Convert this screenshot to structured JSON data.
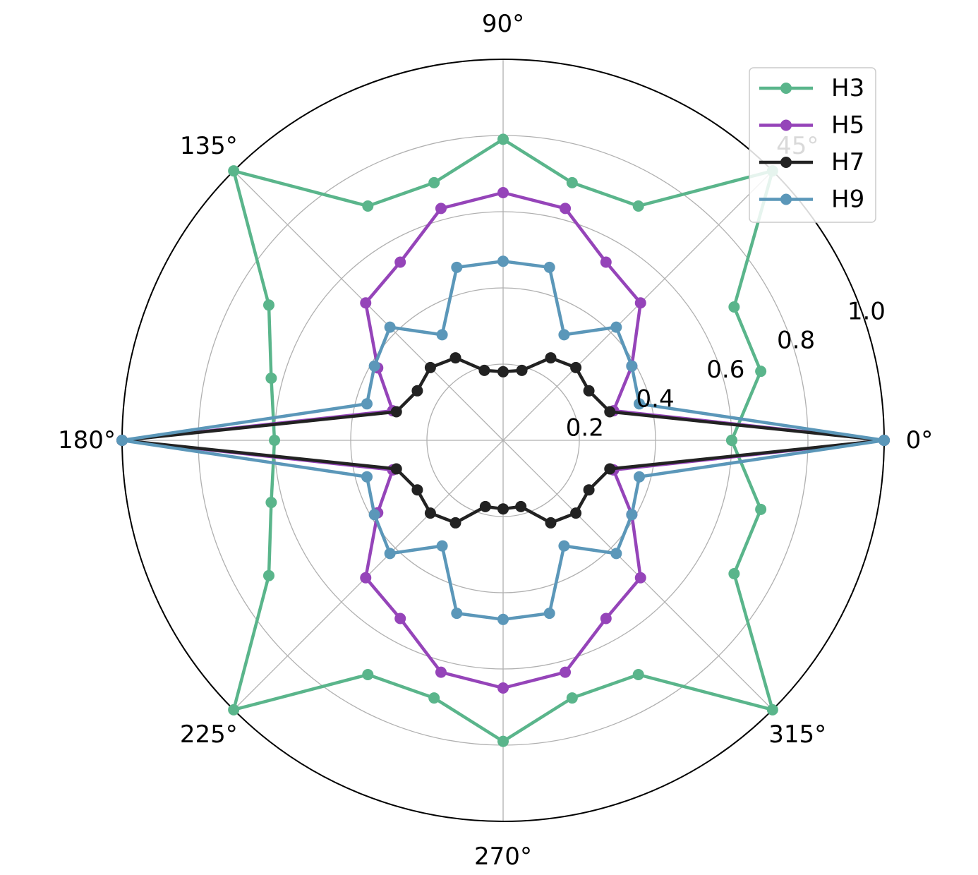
{
  "chart_data": {
    "type": "line",
    "subtype": "polar",
    "title": "",
    "angle_unit": "degrees",
    "rlim": [
      0,
      1.0
    ],
    "rticks": [
      0.2,
      0.4,
      0.6,
      0.8,
      1.0
    ],
    "rtick_labels": [
      "0.2",
      "0.4",
      "0.6",
      "0.8",
      "1.0"
    ],
    "angle_ticks": [
      0,
      45,
      90,
      135,
      180,
      225,
      270,
      315
    ],
    "angle_tick_labels": [
      "0°",
      "45°",
      "90°",
      "135°",
      "180°",
      "225°",
      "270°",
      "315°"
    ],
    "grid": true,
    "legend": {
      "placement": "top-right",
      "entries": [
        "H3",
        "H5",
        "H7",
        "H9"
      ]
    },
    "theta": [
      0,
      15,
      30,
      45,
      60,
      75,
      90,
      105,
      120,
      135,
      150,
      165,
      180,
      195,
      210,
      225,
      240,
      255,
      270,
      285,
      300,
      315,
      330,
      345,
      360
    ],
    "series": [
      {
        "name": "H3",
        "color": "#5ab58b",
        "values": [
          0.6,
          0.7,
          0.7,
          1.0,
          0.71,
          0.7,
          0.79,
          0.7,
          0.71,
          1.0,
          0.71,
          0.63,
          0.6,
          0.63,
          0.71,
          1.0,
          0.71,
          0.7,
          0.79,
          0.7,
          0.71,
          1.0,
          0.7,
          0.7,
          0.6
        ]
      },
      {
        "name": "H5",
        "color": "#9544b9",
        "values": [
          1.0,
          0.3,
          0.39,
          0.51,
          0.54,
          0.63,
          0.65,
          0.63,
          0.54,
          0.51,
          0.38,
          0.3,
          1.0,
          0.3,
          0.38,
          0.51,
          0.54,
          0.63,
          0.65,
          0.63,
          0.54,
          0.51,
          0.39,
          0.3,
          1.0
        ]
      },
      {
        "name": "H7",
        "color": "#222222",
        "values": [
          1.0,
          0.29,
          0.26,
          0.27,
          0.25,
          0.19,
          0.18,
          0.19,
          0.25,
          0.27,
          0.26,
          0.29,
          1.0,
          0.29,
          0.26,
          0.27,
          0.25,
          0.18,
          0.18,
          0.18,
          0.25,
          0.27,
          0.26,
          0.29,
          1.0
        ]
      },
      {
        "name": "H9",
        "color": "#5b97b9",
        "values": [
          1.0,
          0.37,
          0.39,
          0.42,
          0.32,
          0.47,
          0.47,
          0.47,
          0.32,
          0.42,
          0.39,
          0.37,
          1.0,
          0.37,
          0.39,
          0.42,
          0.32,
          0.47,
          0.47,
          0.47,
          0.32,
          0.42,
          0.39,
          0.37,
          1.0
        ]
      }
    ]
  }
}
